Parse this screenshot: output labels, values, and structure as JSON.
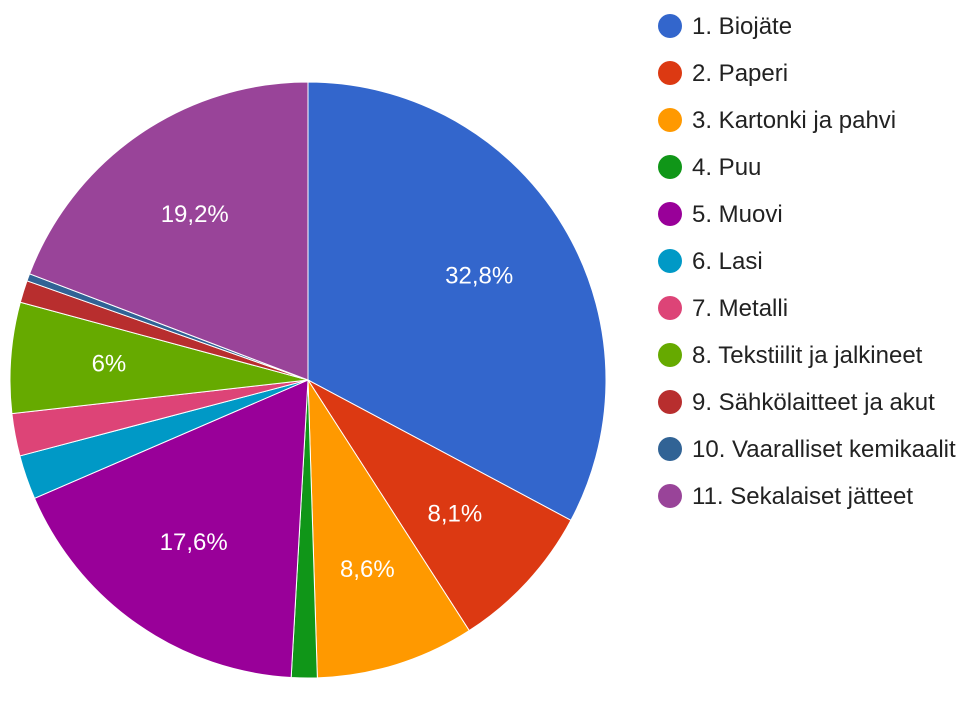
{
  "chart_data": {
    "type": "pie",
    "categories": [
      "1. Biojäte",
      "2. Paperi",
      "3. Kartonki ja pahvi",
      "4. Puu",
      "5. Muovi",
      "6. Lasi",
      "7. Metalli",
      "8. Tekstiilit ja jalkineet",
      "9. Sähkölaitteet ja akut",
      "10. Vaaralliset kemikaalit",
      "11. Sekalaiset jätteet"
    ],
    "values": [
      32.8,
      8.1,
      8.6,
      1.4,
      17.6,
      2.4,
      2.3,
      6,
      1.2,
      0.4,
      19.2
    ],
    "value_labels": [
      "32,8%",
      "8,1%",
      "8,6%",
      null,
      "17,6%",
      null,
      null,
      "6%",
      null,
      null,
      "19,2%"
    ],
    "colors": [
      "#3366cc",
      "#dc3912",
      "#ff9900",
      "#109618",
      "#990099",
      "#0099c6",
      "#dd4477",
      "#66aa00",
      "#b82e2e",
      "#316395",
      "#994499"
    ],
    "legend": "right"
  }
}
